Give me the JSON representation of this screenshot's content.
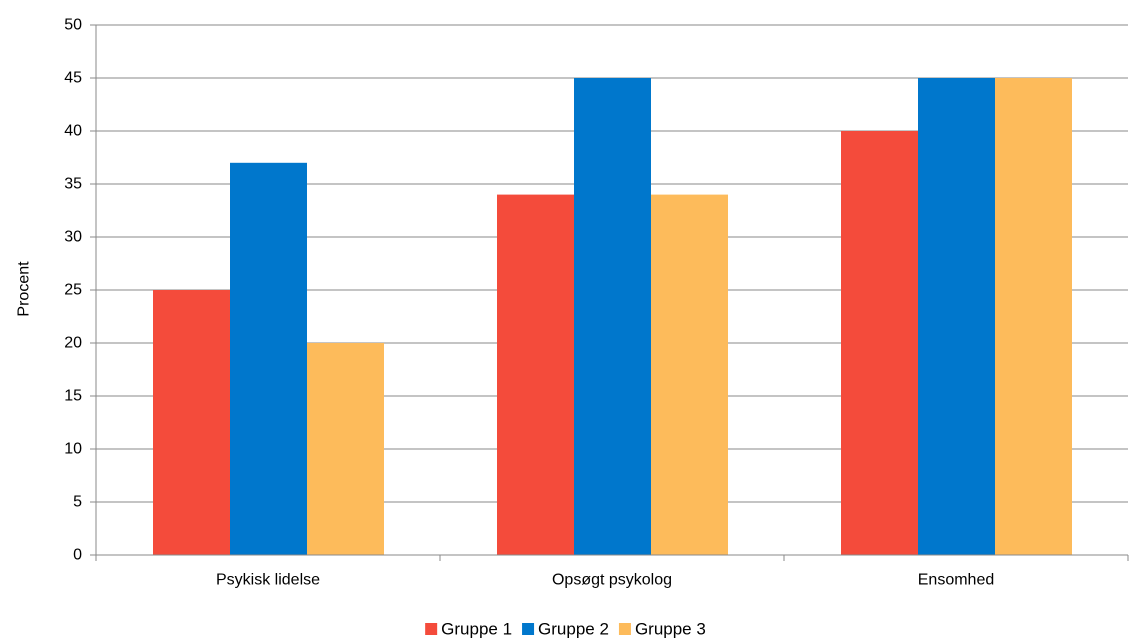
{
  "chart_data": {
    "type": "bar",
    "title": "",
    "xlabel": "",
    "ylabel": "Procent",
    "ylim": [
      0,
      50
    ],
    "yticks": [
      0,
      5,
      10,
      15,
      20,
      25,
      30,
      35,
      40,
      45,
      50
    ],
    "grid": true,
    "legend_position": "bottom",
    "categories": [
      "Psykisk lidelse",
      "Opsøgt psykolog",
      "Ensomhed"
    ],
    "series": [
      {
        "name": "Gruppe 1",
        "color": "#f44b3b",
        "values": [
          25,
          34,
          40
        ]
      },
      {
        "name": "Gruppe 2",
        "color": "#0077cc",
        "values": [
          37,
          45,
          45
        ]
      },
      {
        "name": "Gruppe 3",
        "color": "#fdbb5b",
        "values": [
          20,
          34,
          45
        ]
      }
    ]
  }
}
